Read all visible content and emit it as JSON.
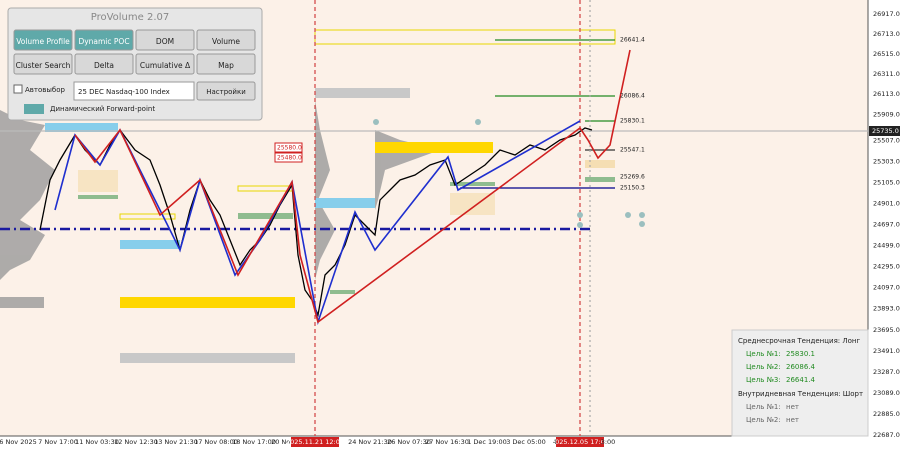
{
  "panel": {
    "title": "ProVolume 2.07",
    "buttons": [
      "Volume Profile",
      "Dynamic POC",
      "DOM",
      "Volume",
      "Cluster Search",
      "Delta",
      "Cumulative Δ",
      "Map"
    ],
    "checkbox": "Автовыбор",
    "select": "25 DEC Nasdaq-100 Index",
    "settings": "Настройки",
    "toggle": "Динамический Forward-point"
  },
  "price_axis": [
    "26917.0",
    "26713.0",
    "26515.0",
    "26311.0",
    "26113.0",
    "25909.0",
    "25507.0",
    "25303.0",
    "25105.0",
    "24901.0",
    "24697.0",
    "24499.0",
    "24295.0",
    "24097.0",
    "23893.0",
    "23695.0",
    "23491.0",
    "23287.0",
    "23089.0",
    "22885.0",
    "22687.0"
  ],
  "current_price": "25735.0",
  "time_axis": [
    "6 Nov 2025",
    "7 Nov 17:00",
    "11 Nov 03:30",
    "12 Nov 12:30",
    "13 Nov 21:30",
    "17 Nov 08:00",
    "18 Nov 17:00",
    "20 Nov 03:30",
    "2025.11.21 12:00",
    "24 Nov 21:30",
    "26 Nov 07:30",
    "27 Nov 16:30",
    "1 Dec 19:00",
    "3 Dec 05:00",
    "4 Dec",
    "2025.12.05 17:00",
    "3:00"
  ],
  "levels": [
    "26641.4",
    "26086.4",
    "25830.1",
    "25547.1",
    "25269.6",
    "25150.3"
  ],
  "zone_labels": [
    "25580.0",
    "25480.0"
  ],
  "info": {
    "mid_trend": "Среднесрочная Тенденция: Лонг",
    "mid_targets": [
      [
        "Цель №1:",
        "25830.1"
      ],
      [
        "Цель №2:",
        "26086.4"
      ],
      [
        "Цель №3:",
        "26641.4"
      ]
    ],
    "intraday_trend": "Внутридневная Тенденция: Шорт",
    "intraday_targets": [
      [
        "Цель №1:",
        "нет"
      ],
      [
        "Цель №2:",
        "нет"
      ]
    ]
  }
}
